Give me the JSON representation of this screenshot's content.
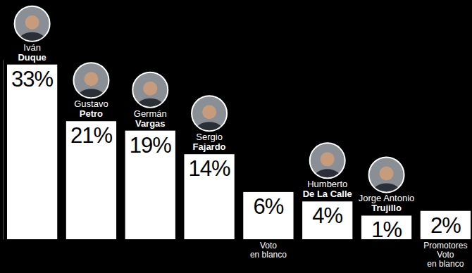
{
  "chart_data": {
    "type": "bar",
    "categories": [
      "Iván\nDuque",
      "Gustavo\nPetro",
      "Germán\nVargas",
      "Sergio\nFajardo",
      "Voto\nen blanco",
      "Humberto\nDe La Calle",
      "Jorge Antonio\nTrujillo",
      "Promotores\nVoto\nen blanco"
    ],
    "values": [
      33,
      21,
      19,
      14,
      6,
      4,
      1,
      2
    ],
    "value_labels": [
      "33%",
      "21%",
      "19%",
      "14%",
      "6%",
      "4%",
      "1%",
      "2%"
    ],
    "color": "#ffffff",
    "ylim": [
      -4,
      34
    ],
    "data_labels": true
  }
}
